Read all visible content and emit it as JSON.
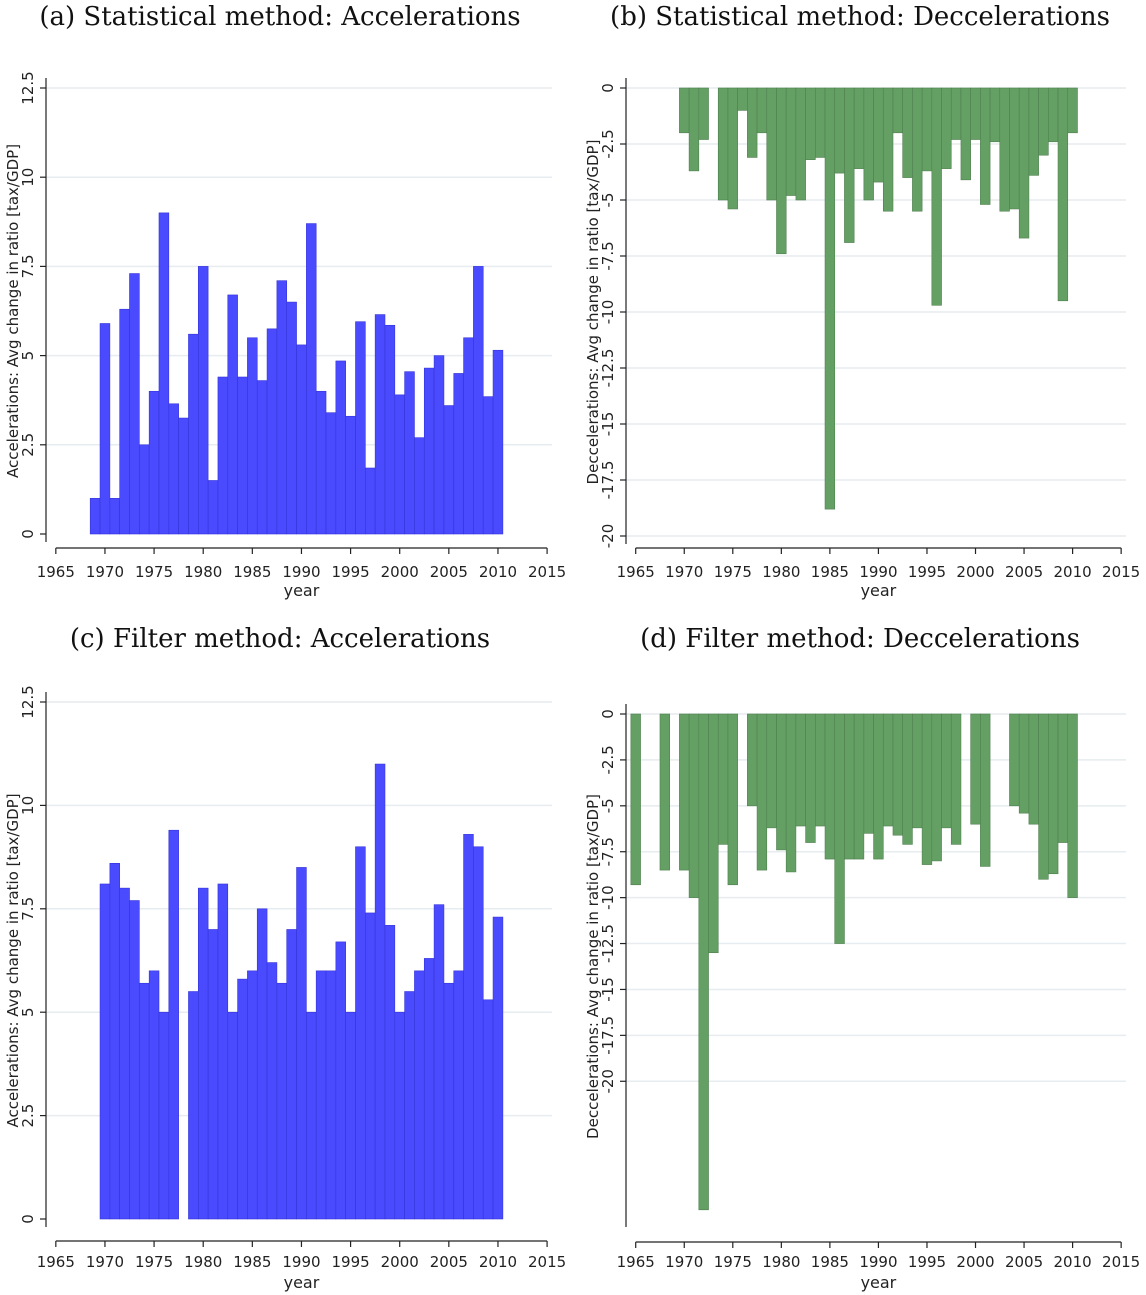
{
  "panels": {
    "a": {
      "title": "(a) Statistical method:  Accelerations"
    },
    "b": {
      "title": "(b) Statistical method:  Deccelerations"
    },
    "c": {
      "title": "(c) Filter method:  Accelerations"
    },
    "d": {
      "title": "(d) Filter method:  Deccelerations"
    }
  },
  "colors": {
    "blue": "#4a4aff",
    "green": "#64a064",
    "grid": "#e6ecef",
    "axis": "#222222"
  },
  "chart_data": [
    {
      "id": "a",
      "type": "bar",
      "title": "(a) Statistical method:  Accelerations",
      "xlabel": "year",
      "ylabel": "Accelerations: Avg change in ratio [tax/GDP]",
      "xlim": [
        1964,
        2015.5
      ],
      "ylim": [
        0,
        12.5
      ],
      "xticks": [
        1965,
        1970,
        1975,
        1980,
        1985,
        1990,
        1995,
        2000,
        2005,
        2010,
        2015
      ],
      "yticks": [
        0,
        2.5,
        5,
        7.5,
        10,
        12.5
      ],
      "ytick_labels": [
        "0",
        "2.5",
        "5",
        "7.5",
        "10",
        "12.5"
      ],
      "color": "#4a4aff",
      "x": [
        1969,
        1970,
        1971,
        1972,
        1973,
        1974,
        1975,
        1976,
        1977,
        1978,
        1979,
        1980,
        1981,
        1982,
        1983,
        1984,
        1985,
        1986,
        1987,
        1988,
        1989,
        1990,
        1991,
        1992,
        1993,
        1994,
        1995,
        1996,
        1997,
        1998,
        1999,
        2000,
        2001,
        2002,
        2003,
        2004,
        2005,
        2006,
        2007,
        2008,
        2009,
        2010
      ],
      "values": [
        1.0,
        5.9,
        1.0,
        6.3,
        7.3,
        2.5,
        4.0,
        9.0,
        3.65,
        3.25,
        5.6,
        7.5,
        1.5,
        4.4,
        6.7,
        4.4,
        5.5,
        4.3,
        5.75,
        7.1,
        6.5,
        5.3,
        8.7,
        4.0,
        3.4,
        4.85,
        3.3,
        5.95,
        1.85,
        6.15,
        5.85,
        3.9,
        4.55,
        2.7,
        4.65,
        5.0,
        3.6,
        4.5,
        5.5,
        7.5,
        3.85,
        5.15
      ]
    },
    {
      "id": "b",
      "type": "bar",
      "title": "(b) Statistical method:  Deccelerations",
      "xlabel": "year",
      "ylabel": "Deccelerations: Avg change in ratio [tax/GDP]",
      "xlim": [
        1964,
        2015.5
      ],
      "ylim": [
        -20,
        0
      ],
      "xticks": [
        1965,
        1970,
        1975,
        1980,
        1985,
        1990,
        1995,
        2000,
        2005,
        2010,
        2015
      ],
      "yticks": [
        0,
        -2.5,
        -5,
        -7.5,
        -10,
        -12.5,
        -15,
        -17.5,
        -20
      ],
      "ytick_labels": [
        "0",
        "-2.5",
        "-5",
        "-7.5",
        "-10",
        "-12.5",
        "-15",
        "-17.5",
        "-20"
      ],
      "color": "#64a064",
      "x": [
        1970,
        1971,
        1972,
        1974,
        1975,
        1976,
        1977,
        1978,
        1979,
        1980,
        1981,
        1982,
        1983,
        1984,
        1985,
        1986,
        1987,
        1988,
        1989,
        1990,
        1991,
        1992,
        1993,
        1994,
        1995,
        1996,
        1997,
        1998,
        1999,
        2000,
        2001,
        2002,
        2003,
        2004,
        2005,
        2006,
        2007,
        2008,
        2009,
        2010
      ],
      "values": [
        -2.0,
        -3.7,
        -2.3,
        -5.0,
        -5.4,
        -1.0,
        -3.1,
        -2.0,
        -5.0,
        -7.4,
        -4.8,
        -5.0,
        -3.2,
        -3.1,
        -18.8,
        -3.8,
        -6.9,
        -3.6,
        -5.0,
        -4.2,
        -5.5,
        -2.0,
        -4.0,
        -5.5,
        -3.7,
        -9.7,
        -3.6,
        -2.3,
        -4.1,
        -2.3,
        -5.2,
        -2.4,
        -5.5,
        -5.4,
        -6.7,
        -3.9,
        -3.0,
        -2.4,
        -9.5,
        -2.0
      ]
    },
    {
      "id": "c",
      "type": "bar",
      "title": "(c) Filter method:  Accelerations",
      "xlabel": "year",
      "ylabel": "Accelerations: Avg change in ratio [tax/GDP]",
      "xlim": [
        1964,
        2015.5
      ],
      "ylim": [
        0,
        12.5
      ],
      "xticks": [
        1965,
        1970,
        1975,
        1980,
        1985,
        1990,
        1995,
        2000,
        2005,
        2010,
        2015
      ],
      "yticks": [
        0,
        2.5,
        5,
        7.5,
        10,
        12.5
      ],
      "ytick_labels": [
        "0",
        "2.5",
        "5",
        "7.5",
        "10",
        "12.5"
      ],
      "color": "#4a4aff",
      "x": [
        1970,
        1971,
        1972,
        1973,
        1974,
        1975,
        1976,
        1977,
        1979,
        1980,
        1981,
        1982,
        1983,
        1984,
        1985,
        1986,
        1987,
        1988,
        1989,
        1990,
        1991,
        1992,
        1993,
        1994,
        1995,
        1996,
        1997,
        1998,
        1999,
        2000,
        2001,
        2002,
        2003,
        2004,
        2005,
        2006,
        2007,
        2008,
        2009,
        2010
      ],
      "values": [
        8.1,
        8.6,
        8.0,
        7.7,
        5.7,
        6.0,
        5.0,
        9.4,
        5.5,
        8.0,
        7.0,
        8.1,
        5.0,
        5.8,
        6.0,
        7.5,
        6.2,
        5.7,
        7.0,
        8.5,
        5.0,
        6.0,
        6.0,
        6.7,
        5.0,
        9.0,
        7.4,
        11.0,
        7.1,
        5.0,
        5.5,
        6.0,
        6.3,
        7.6,
        5.7,
        6.0,
        9.3,
        9.0,
        5.3,
        7.3
      ]
    },
    {
      "id": "d",
      "type": "bar",
      "title": "(d) Filter method:  Deccelerations",
      "xlabel": "year",
      "ylabel": "Deccelerations: Avg change in ratio [tax/GDP]",
      "xlim": [
        1964,
        2015.5
      ],
      "ylim": [
        -27.5,
        0
      ],
      "xticks": [
        1965,
        1970,
        1975,
        1980,
        1985,
        1990,
        1995,
        2000,
        2005,
        2010,
        2015
      ],
      "yticks": [
        0,
        -2.5,
        -5,
        -7.5,
        -10,
        -12.5,
        -15,
        -17.5,
        -20
      ],
      "ytick_labels": [
        "0",
        "-2.5",
        "-5",
        "-7.5",
        "-10",
        "-12.5",
        "-15",
        "-17.5",
        "-20"
      ],
      "color": "#64a064",
      "x": [
        1965,
        1968,
        1970,
        1971,
        1972,
        1973,
        1974,
        1975,
        1977,
        1978,
        1979,
        1980,
        1981,
        1982,
        1983,
        1984,
        1985,
        1986,
        1987,
        1988,
        1989,
        1990,
        1991,
        1992,
        1993,
        1994,
        1995,
        1996,
        1997,
        1998,
        2000,
        2001,
        2004,
        2005,
        2006,
        2007,
        2008,
        2009,
        2010
      ],
      "values": [
        -9.3,
        -8.5,
        -8.5,
        -10.0,
        -27.0,
        -13.0,
        -7.1,
        -9.3,
        -5.0,
        -8.5,
        -6.2,
        -7.4,
        -8.6,
        -6.1,
        -7.0,
        -6.1,
        -7.9,
        -12.5,
        -7.9,
        -7.9,
        -6.5,
        -7.9,
        -6.1,
        -6.6,
        -7.1,
        -6.2,
        -8.2,
        -8.0,
        -6.2,
        -7.1,
        -6.0,
        -8.3,
        -5.0,
        -5.4,
        -6.0,
        -9.0,
        -8.7,
        -7.0,
        -10.0
      ]
    }
  ]
}
